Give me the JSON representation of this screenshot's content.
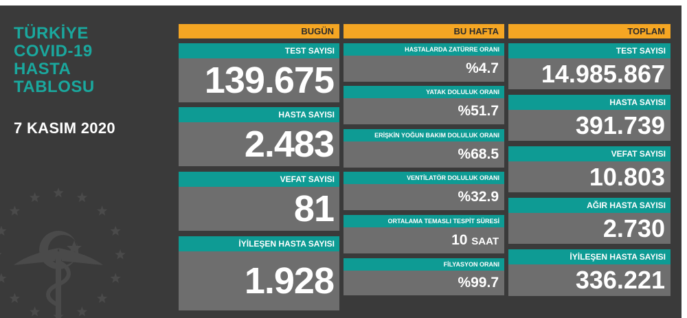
{
  "title_lines": [
    "TÜRKİYE",
    "COVID-19",
    "HASTA",
    "TABLOSU"
  ],
  "date": "7 KASIM 2020",
  "headers": {
    "today": "BUGÜN",
    "week": "BU HAFTA",
    "total": "TOPLAM"
  },
  "today": [
    {
      "label": "TEST SAYISI",
      "value": "139.675"
    },
    {
      "label": "HASTA SAYISI",
      "value": "2.483"
    },
    {
      "label": "VEFAT SAYISI",
      "value": "81"
    },
    {
      "label": "İYİLEŞEN HASTA SAYISI",
      "value": "1.928"
    }
  ],
  "week": [
    {
      "label": "HASTALARDA ZATÜRRE ORANI",
      "value": "%4.7"
    },
    {
      "label": "YATAK DOLULUK ORANI",
      "value": "%51.7"
    },
    {
      "label": "ERİŞKİN YOĞUN BAKIM DOLULUK ORANI",
      "value": "%68.5"
    },
    {
      "label": "VENTİLATÖR DOLULUK ORANI",
      "value": "%32.9"
    },
    {
      "label": "ORTALAMA TEMASLI TESPİT SÜRESİ",
      "value": "10",
      "unit": "SAAT"
    },
    {
      "label": "FİLYASYON ORANI",
      "value": "%99.7"
    }
  ],
  "total": [
    {
      "label": "TEST SAYISI",
      "value": "14.985.867"
    },
    {
      "label": "HASTA SAYISI",
      "value": "391.739"
    },
    {
      "label": "VEFAT SAYISI",
      "value": "10.803"
    },
    {
      "label": "AĞIR HASTA SAYISI",
      "value": "2.730"
    },
    {
      "label": "İYİLEŞEN HASTA SAYISI",
      "value": "336.221"
    }
  ],
  "colors": {
    "background": "#3a3a3a",
    "accent_teal": "#0e9b94",
    "header_orange": "#f5a623",
    "value_gray": "#6e6e6e",
    "title_teal": "#1aa89e"
  },
  "icons": [
    "ministry-of-health-emblem-icon"
  ]
}
